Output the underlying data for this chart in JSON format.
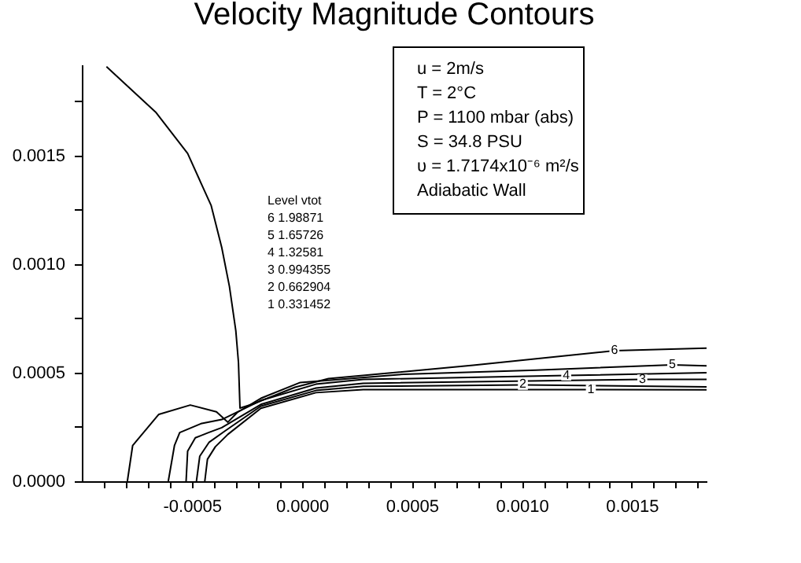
{
  "chart_data": {
    "type": "line",
    "title": "Velocity Magnitude Contours",
    "xlim": [
      -0.001,
      0.00184
    ],
    "ylim": [
      0,
      0.00192
    ],
    "xticks": [
      {
        "value": -0.0009,
        "label": null
      },
      {
        "value": -0.0008,
        "label": null
      },
      {
        "value": -0.0007,
        "label": null
      },
      {
        "value": -0.0006,
        "label": null
      },
      {
        "value": -0.0005,
        "label": "-0.0005"
      },
      {
        "value": -0.0004,
        "label": null
      },
      {
        "value": -0.0003,
        "label": null
      },
      {
        "value": -0.0002,
        "label": null
      },
      {
        "value": -0.0001,
        "label": null
      },
      {
        "value": 0,
        "label": "0.0000"
      },
      {
        "value": 0.0001,
        "label": null
      },
      {
        "value": 0.0002,
        "label": null
      },
      {
        "value": 0.0003,
        "label": null
      },
      {
        "value": 0.0004,
        "label": null
      },
      {
        "value": 0.0005,
        "label": "0.0005"
      },
      {
        "value": 0.0006,
        "label": null
      },
      {
        "value": 0.0007,
        "label": null
      },
      {
        "value": 0.0008,
        "label": null
      },
      {
        "value": 0.0009,
        "label": null
      },
      {
        "value": 0.001,
        "label": "0.0010"
      },
      {
        "value": 0.0011,
        "label": null
      },
      {
        "value": 0.0012,
        "label": null
      },
      {
        "value": 0.0013,
        "label": null
      },
      {
        "value": 0.0014,
        "label": null
      },
      {
        "value": 0.0015,
        "label": "0.0015"
      },
      {
        "value": 0.0016,
        "label": null
      },
      {
        "value": 0.0017,
        "label": null
      },
      {
        "value": 0.0018,
        "label": null
      }
    ],
    "yticks": [
      {
        "value": 0,
        "label": "0.0000"
      },
      {
        "value": 0.00025,
        "label": null
      },
      {
        "value": 0.0005,
        "label": "0.0005"
      },
      {
        "value": 0.00075,
        "label": null
      },
      {
        "value": 0.001,
        "label": "0.0010"
      },
      {
        "value": 0.00125,
        "label": null
      },
      {
        "value": 0.0015,
        "label": "0.0015"
      },
      {
        "value": 0.00175,
        "label": null
      }
    ],
    "grid": false,
    "legend": false,
    "series": [
      {
        "name": "6",
        "color": "#000000",
        "x": [
          -0.000888,
          -0.000662,
          -0.000519,
          -0.000412,
          -0.000364,
          -0.000329,
          -0.0003,
          -0.000288,
          -0.000281,
          -0.000221,
          -3.1e-05,
          0.000121,
          0.000779,
          0.001421,
          0.00184
        ],
        "values": [
          0.00191,
          0.001698,
          0.00151,
          0.00127,
          0.001077,
          0.000897,
          0.000693,
          0.000548,
          0.000337,
          0.000356,
          0.000433,
          0.000473,
          0.000534,
          0.000601,
          0.000613
        ]
      },
      {
        "name": "5",
        "color": "#000000",
        "x": [
          -0.000793,
          -0.000769,
          -0.00065,
          -0.000507,
          -0.000388,
          -0.000336,
          -0.000293,
          -0.000186,
          -7e-06,
          0.000462,
          0.001064,
          0.001684,
          0.00184
        ],
        "values": [
          0,
          0.000164,
          0.000308,
          0.000351,
          0.00032,
          0.000272,
          0.000317,
          0.000382,
          0.000455,
          0.000493,
          0.000512,
          0.000536,
          0.000532
        ]
      },
      {
        "name": "4",
        "color": "#000000",
        "x": [
          -0.000607,
          -0.000579,
          -0.000555,
          -0.000459,
          -0.000364,
          -0.000186,
          6.4e-05,
          0.000279,
          0.001202,
          0.00184
        ],
        "values": [
          0,
          0.000164,
          0.000224,
          0.000265,
          0.000284,
          0.000372,
          0.000447,
          0.000469,
          0.000487,
          0.0005
        ]
      },
      {
        "name": "3",
        "color": "#000000",
        "x": [
          -0.000526,
          -0.000519,
          -0.000484,
          -0.000424,
          -0.000364,
          -0.000186,
          6.4e-05,
          0.000279,
          0.001548,
          0.00184
        ],
        "values": [
          0,
          0.000139,
          0.0002,
          0.000224,
          0.000247,
          0.000354,
          0.000429,
          0.000451,
          0.000469,
          0.000469
        ]
      },
      {
        "name": "2",
        "color": "#000000",
        "x": [
          -0.000479,
          -0.000464,
          -0.000421,
          -0.00035,
          -0.000186,
          6.4e-05,
          0.000279,
          0.001005,
          0.00184
        ],
        "values": [
          0,
          0.000115,
          0.00018,
          0.000231,
          0.000346,
          0.000418,
          0.000437,
          0.000444,
          0.000435
        ]
      },
      {
        "name": "1",
        "color": "#000000",
        "x": [
          -0.000441,
          -0.000429,
          -0.000393,
          -0.000336,
          -0.000186,
          6.4e-05,
          0.000279,
          0.001314,
          0.00184
        ],
        "values": [
          0,
          0.000101,
          0.000159,
          0.000216,
          0.000336,
          0.000408,
          0.000422,
          0.000422,
          0.000421
        ]
      }
    ],
    "annotations": [
      "u = 2m/s",
      "T = 2°C",
      "P = 1100 mbar (abs)",
      "S = 34.8 PSU",
      "υ = 1.7174x10⁻⁶ m²/s",
      "Adiabatic Wall",
      "Level   vtot",
      "6      1.98871",
      "5      1.65726",
      "4      1.32581",
      "3      0.994355",
      "2      0.662904",
      "1      0.331452"
    ]
  }
}
